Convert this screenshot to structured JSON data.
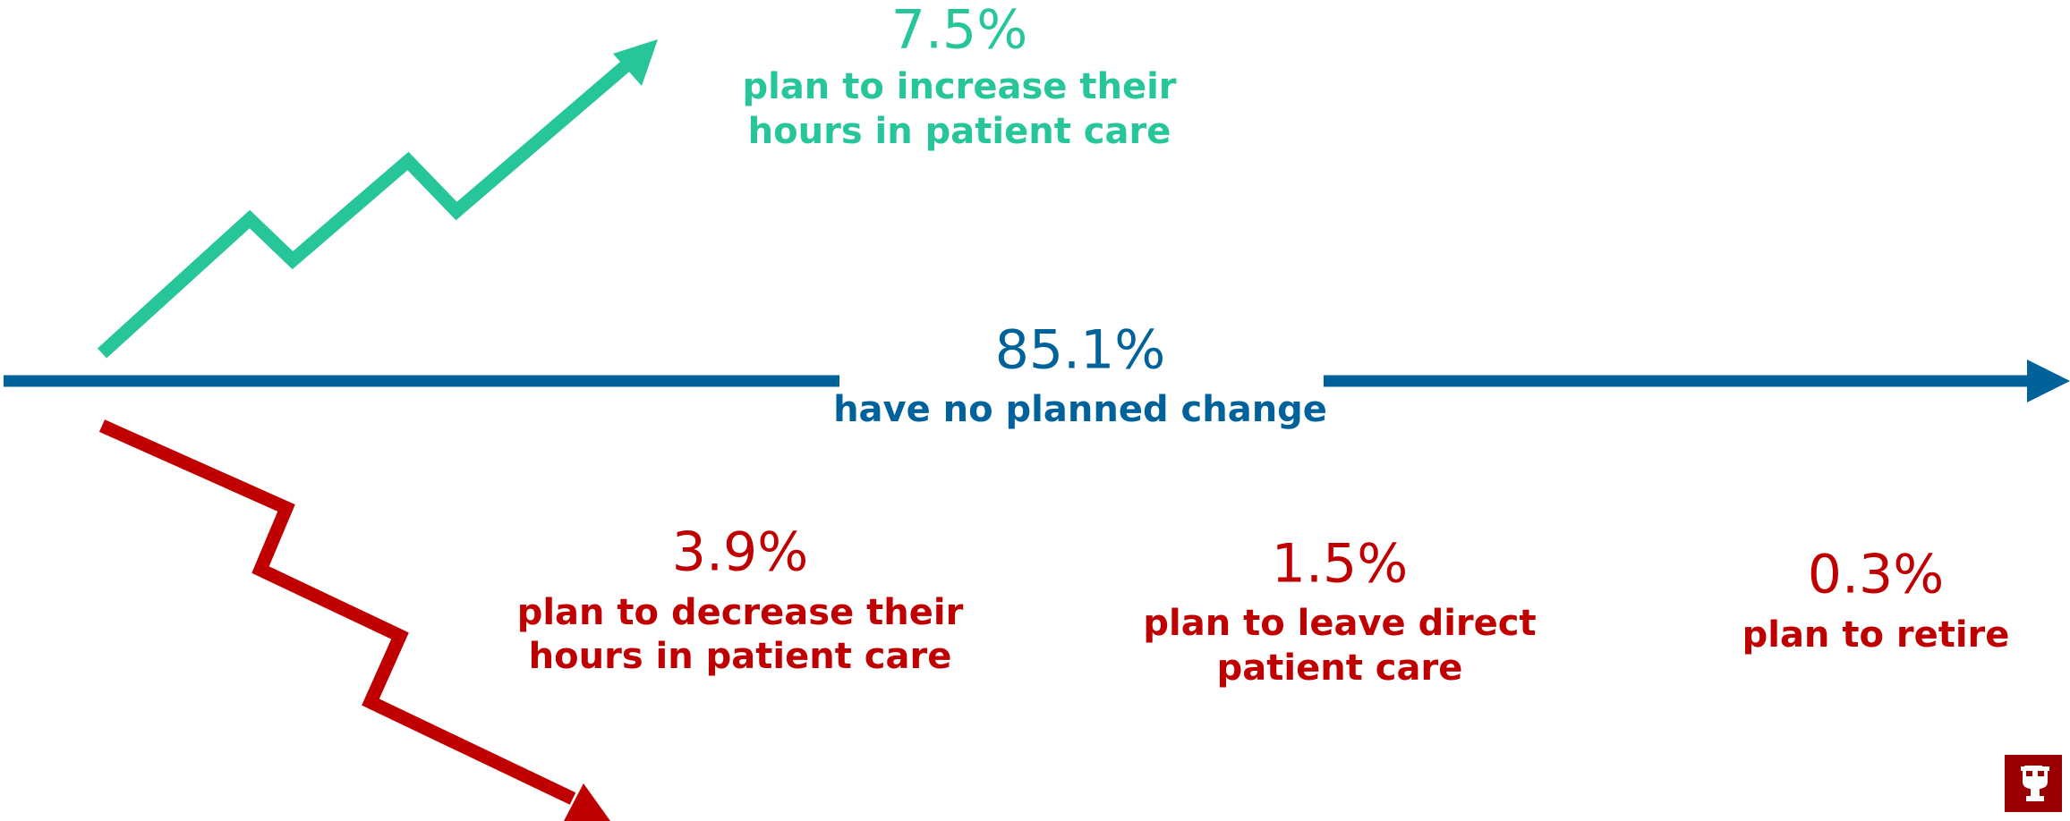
{
  "items": [
    {
      "value": "7.5%",
      "label": [
        "plan to increase their",
        "hours in patient care"
      ]
    },
    {
      "value": "85.1%",
      "label": [
        "have no planned change"
      ]
    },
    {
      "value": "3.9%",
      "label": [
        "plan to decrease their",
        "hours in patient care"
      ]
    },
    {
      "value": "1.5%",
      "label": [
        "plan to leave direct",
        "patient care"
      ]
    },
    {
      "value": "0.3%",
      "label": [
        "plan to retire"
      ]
    }
  ]
}
